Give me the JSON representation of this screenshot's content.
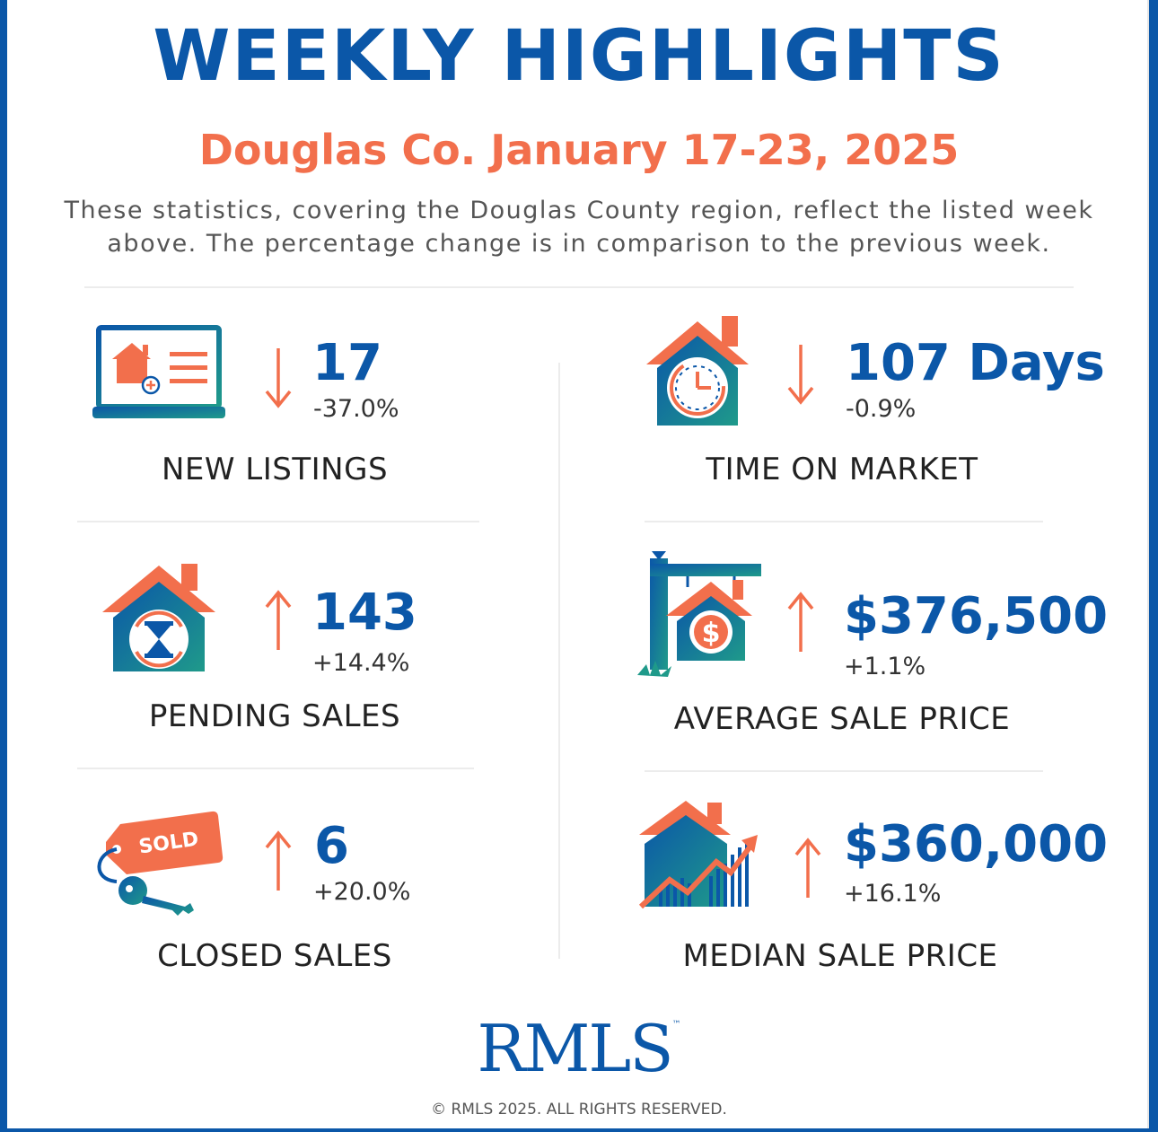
{
  "header": {
    "title": "WEEKLY HIGHLIGHTS",
    "subtitle": "Douglas Co. January 17-23, 2025",
    "description": "These statistics, covering the Douglas County region, reflect the listed week above. The percentage change is in comparison to the previous week."
  },
  "stats": {
    "new_listings": {
      "value": "17",
      "change": "-37.0%",
      "label": "NEW LISTINGS",
      "direction": "down",
      "icon": "laptop-house-icon"
    },
    "time_on_market": {
      "value": "107 Days",
      "change": "-0.9%",
      "label": "TIME ON MARKET",
      "direction": "down",
      "icon": "house-clock-icon"
    },
    "pending_sales": {
      "value": "143",
      "change": "+14.4%",
      "label": "PENDING SALES",
      "direction": "up",
      "icon": "house-hourglass-icon"
    },
    "average_sale_price": {
      "value": "$376,500",
      "change": "+1.1%",
      "label": "AVERAGE SALE PRICE",
      "direction": "up",
      "icon": "house-dollar-sign-icon"
    },
    "closed_sales": {
      "value": "6",
      "change": "+20.0%",
      "label": "CLOSED SALES",
      "direction": "up",
      "icon": "sold-tag-key-icon"
    },
    "median_sale_price": {
      "value": "$360,000",
      "change": "+16.1%",
      "label": "MEDIAN SALE PRICE",
      "direction": "up",
      "icon": "house-chart-icon"
    }
  },
  "footer": {
    "logo": "RMLS",
    "trademark": "™",
    "copyright": "© RMLS 2025. ALL RIGHTS RESERVED."
  },
  "colors": {
    "brand_blue": "#0b57a8",
    "accent_orange": "#f26f4c",
    "teal": "#1f9a8a"
  }
}
